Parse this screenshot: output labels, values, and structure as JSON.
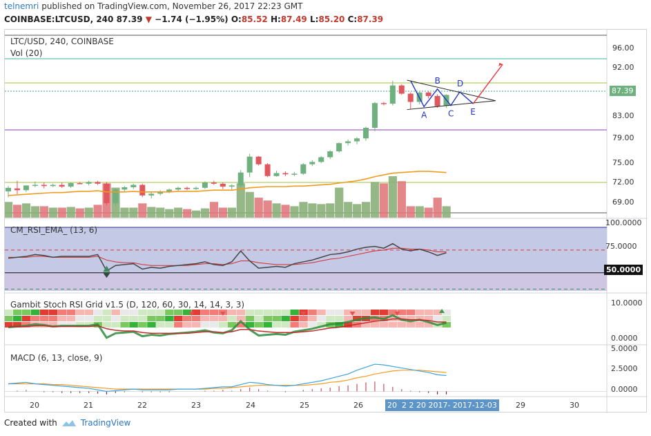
{
  "header": {
    "username": "telnemri",
    "published_text": "published on TradingView.com, November 26, 2017 22:23 GMT",
    "symbol": "COINBASE:LTCUSD, 240",
    "last": "87.39",
    "change": "−1.74 (−1.95%)",
    "o_label": "O:",
    "o_val": "85.52",
    "h_label": "H:",
    "h_val": "87.49",
    "l_label": "L:",
    "l_val": "85.20",
    "c_label": "C:",
    "c_val": "87.39"
  },
  "pane_main": {
    "title": "LTC/USD, 240, COINBASE",
    "vol_label": "Vol (20)",
    "y_ticks": [
      "96.00",
      "92.00",
      "87.39",
      "83.00",
      "79.00",
      "75.00",
      "72.00",
      "69.00"
    ],
    "price_tag": "87.39",
    "pattern_labels": [
      "A",
      "B",
      "C",
      "D",
      "E"
    ]
  },
  "pane_rsi": {
    "title": "CM_RSI_EMA_ (13, 6)",
    "y_ticks": [
      "100.0000",
      "75.0000",
      "50.0000"
    ],
    "tag": "50.0000"
  },
  "pane_stoch": {
    "title": "Gambit Stoch RSI Grid v1.5 (D, 120, 60, 30, 14, 14, 3, 3)",
    "y_ticks": [
      "10.0000",
      "0.0000"
    ]
  },
  "pane_macd": {
    "title": "MACD (6, 13, close, 9)",
    "y_ticks": [
      "5.0000",
      "2.5000",
      "0.0000"
    ]
  },
  "x_axis": {
    "ticks": [
      "20",
      "21",
      "22",
      "23",
      "24",
      "25",
      "26",
      "29",
      "30"
    ],
    "highlight": "20  2 2 20 2017- 2017-12-03"
  },
  "footer": {
    "created_with": "Created with",
    "brand": "TradingView"
  },
  "colors": {
    "up": "#6fb07f",
    "down": "#e0575e",
    "accent": "#2a79c8",
    "rsi_bg": "#b6bee0"
  },
  "chart_data": {
    "type": "candlestick",
    "title": "LTC/USD, 240, COINBASE",
    "series": [
      {
        "name": "LTC/USD",
        "candles": [
          {
            "o": 71.0,
            "h": 71.9,
            "l": 70.0,
            "c": 71.6
          },
          {
            "o": 71.5,
            "h": 72.8,
            "l": 70.5,
            "c": 71.2
          },
          {
            "o": 71.2,
            "h": 72.0,
            "l": 70.9,
            "c": 72.0
          },
          {
            "o": 72.0,
            "h": 72.7,
            "l": 71.7,
            "c": 72.1
          },
          {
            "o": 72.1,
            "h": 72.5,
            "l": 71.5,
            "c": 71.9
          },
          {
            "o": 71.9,
            "h": 72.3,
            "l": 71.7,
            "c": 72.1
          },
          {
            "o": 72.1,
            "h": 72.5,
            "l": 71.6,
            "c": 71.8
          },
          {
            "o": 71.8,
            "h": 72.5,
            "l": 71.6,
            "c": 72.4
          },
          {
            "o": 72.4,
            "h": 72.6,
            "l": 72.2,
            "c": 72.3
          },
          {
            "o": 72.3,
            "h": 72.8,
            "l": 72.0,
            "c": 72.6
          },
          {
            "o": 72.6,
            "h": 72.8,
            "l": 72.1,
            "c": 72.3
          },
          {
            "o": 72.3,
            "h": 72.6,
            "l": 68.6,
            "c": 69.0
          },
          {
            "o": 69.0,
            "h": 71.5,
            "l": 68.5,
            "c": 71.3
          },
          {
            "o": 71.3,
            "h": 71.9,
            "l": 71.0,
            "c": 71.7
          },
          {
            "o": 71.7,
            "h": 72.3,
            "l": 71.4,
            "c": 72.1
          },
          {
            "o": 72.1,
            "h": 72.3,
            "l": 70.0,
            "c": 70.3
          },
          {
            "o": 70.3,
            "h": 71.0,
            "l": 69.8,
            "c": 70.6
          },
          {
            "o": 70.6,
            "h": 71.2,
            "l": 70.3,
            "c": 71.0
          },
          {
            "o": 71.0,
            "h": 71.5,
            "l": 70.7,
            "c": 71.3
          },
          {
            "o": 71.3,
            "h": 71.8,
            "l": 71.0,
            "c": 71.6
          },
          {
            "o": 71.6,
            "h": 71.8,
            "l": 71.2,
            "c": 71.4
          },
          {
            "o": 71.4,
            "h": 71.8,
            "l": 71.2,
            "c": 71.6
          },
          {
            "o": 71.6,
            "h": 72.7,
            "l": 71.4,
            "c": 72.5
          },
          {
            "o": 72.5,
            "h": 72.8,
            "l": 72.1,
            "c": 72.3
          },
          {
            "o": 72.3,
            "h": 72.5,
            "l": 71.4,
            "c": 71.8
          },
          {
            "o": 71.8,
            "h": 72.2,
            "l": 71.3,
            "c": 72.0
          },
          {
            "o": 72.0,
            "h": 74.6,
            "l": 71.7,
            "c": 74.2
          },
          {
            "o": 74.2,
            "h": 77.4,
            "l": 73.4,
            "c": 76.9
          },
          {
            "o": 76.9,
            "h": 77.0,
            "l": 75.4,
            "c": 75.6
          },
          {
            "o": 75.6,
            "h": 75.8,
            "l": 73.4,
            "c": 73.6
          },
          {
            "o": 73.6,
            "h": 74.5,
            "l": 73.5,
            "c": 74.1
          },
          {
            "o": 74.1,
            "h": 74.4,
            "l": 73.6,
            "c": 73.9
          },
          {
            "o": 73.9,
            "h": 74.3,
            "l": 73.6,
            "c": 74.0
          },
          {
            "o": 74.0,
            "h": 75.8,
            "l": 73.8,
            "c": 75.6
          },
          {
            "o": 75.6,
            "h": 76.3,
            "l": 75.3,
            "c": 76.0
          },
          {
            "o": 76.0,
            "h": 77.0,
            "l": 75.8,
            "c": 76.8
          },
          {
            "o": 76.8,
            "h": 78.0,
            "l": 76.5,
            "c": 77.8
          },
          {
            "o": 77.8,
            "h": 79.3,
            "l": 77.6,
            "c": 79.2
          },
          {
            "o": 79.2,
            "h": 79.8,
            "l": 78.8,
            "c": 79.5
          },
          {
            "o": 79.5,
            "h": 80.2,
            "l": 79.0,
            "c": 80.0
          },
          {
            "o": 80.0,
            "h": 82.0,
            "l": 79.6,
            "c": 81.8
          },
          {
            "o": 81.8,
            "h": 86.2,
            "l": 81.2,
            "c": 86.0
          },
          {
            "o": 86.0,
            "h": 86.2,
            "l": 85.6,
            "c": 85.9
          },
          {
            "o": 85.9,
            "h": 89.8,
            "l": 85.6,
            "c": 89.0
          },
          {
            "o": 89.0,
            "h": 89.2,
            "l": 87.4,
            "c": 87.6
          },
          {
            "o": 87.6,
            "h": 87.8,
            "l": 85.0,
            "c": 86.2
          },
          {
            "o": 86.2,
            "h": 87.9,
            "l": 85.8,
            "c": 87.8
          },
          {
            "o": 87.8,
            "h": 88.0,
            "l": 86.8,
            "c": 87.2
          },
          {
            "o": 87.2,
            "h": 87.5,
            "l": 85.2,
            "c": 85.5
          },
          {
            "o": 85.52,
            "h": 87.49,
            "l": 85.2,
            "c": 87.39
          }
        ]
      }
    ],
    "volume": [
      22,
      18,
      20,
      16,
      16,
      14,
      14,
      15,
      13,
      14,
      18,
      48,
      42,
      14,
      14,
      20,
      15,
      14,
      12,
      14,
      12,
      10,
      13,
      22,
      14,
      14,
      48,
      36,
      28,
      24,
      20,
      18,
      16,
      22,
      20,
      19,
      20,
      42,
      22,
      19,
      22,
      50,
      48,
      58,
      51,
      16,
      16,
      14,
      28,
      16
    ],
    "ylim": [
      67,
      98
    ],
    "ema": [
      70.3,
      70.4,
      70.5,
      70.6,
      70.7,
      70.8,
      70.8,
      70.9,
      71.0,
      71.0,
      71.1,
      70.9,
      70.9,
      70.9,
      71.0,
      70.9,
      70.9,
      70.9,
      70.9,
      71.0,
      71.0,
      71.0,
      71.1,
      71.2,
      71.2,
      71.2,
      71.4,
      71.6,
      71.7,
      71.8,
      71.8,
      71.8,
      71.9,
      71.9,
      72.0,
      72.1,
      72.2,
      72.4,
      72.6,
      72.8,
      73.1,
      73.5,
      73.8,
      74.1,
      74.2,
      74.3,
      74.4,
      74.4,
      74.3,
      74.2
    ],
    "pattern_points": [
      {
        "label": "",
        "x": 45,
        "y": 89.8
      },
      {
        "label": "A",
        "x": 46.5,
        "y": 85.4
      },
      {
        "label": "B",
        "x": 48,
        "y": 88.4
      },
      {
        "label": "C",
        "x": 49.5,
        "y": 85.6
      },
      {
        "label": "D",
        "x": 50.5,
        "y": 87.9
      },
      {
        "label": "E",
        "x": 52,
        "y": 85.9
      }
    ],
    "rsi": {
      "ylim": [
        30,
        100
      ],
      "levels": [
        100,
        75,
        50
      ],
      "rsi_line": [
        66,
        67,
        68,
        70,
        69,
        67,
        68,
        68,
        68,
        68,
        70,
        52,
        58,
        59,
        60,
        54,
        56,
        55,
        57,
        58,
        59,
        60,
        62,
        59,
        58,
        62,
        74,
        63,
        55,
        56,
        57,
        56,
        60,
        62,
        64,
        67,
        70,
        71,
        73,
        76,
        78,
        79,
        77,
        82,
        76,
        74,
        76,
        73,
        69,
        72
      ],
      "ema_line": [
        67,
        67,
        67,
        68,
        68,
        67,
        67,
        67,
        67,
        67,
        68,
        64,
        62,
        61,
        61,
        59,
        58,
        58,
        58,
        58,
        58,
        59,
        60,
        60,
        59,
        60,
        63,
        63,
        61,
        60,
        59,
        59,
        59,
        60,
        61,
        63,
        65,
        66,
        68,
        70,
        72,
        74,
        75,
        77,
        77,
        76,
        76,
        75,
        73,
        73
      ]
    },
    "macd": {
      "ylim": [
        -0.6,
        5.8
      ],
      "macd_line": [
        1.0,
        1.1,
        1.2,
        1.0,
        0.9,
        0.8,
        0.7,
        0.6,
        0.5,
        0.4,
        0.2,
        0.0,
        0.1,
        0.2,
        0.3,
        0.2,
        0.2,
        0.2,
        0.2,
        0.3,
        0.3,
        0.3,
        0.4,
        0.5,
        0.6,
        0.6,
        0.9,
        1.2,
        1.1,
        0.9,
        0.8,
        0.7,
        0.8,
        1.0,
        1.2,
        1.4,
        1.7,
        2.0,
        2.3,
        2.8,
        3.2,
        3.6,
        3.5,
        3.3,
        3.1,
        2.9,
        2.7,
        2.5,
        2.2,
        2.1
      ],
      "signal_line": [
        1.0,
        1.0,
        1.0,
        1.0,
        1.0,
        0.9,
        0.9,
        0.8,
        0.7,
        0.6,
        0.5,
        0.4,
        0.3,
        0.3,
        0.3,
        0.3,
        0.3,
        0.3,
        0.3,
        0.3,
        0.3,
        0.3,
        0.3,
        0.4,
        0.4,
        0.5,
        0.6,
        0.7,
        0.8,
        0.8,
        0.8,
        0.8,
        0.8,
        0.8,
        0.9,
        1.0,
        1.2,
        1.3,
        1.5,
        1.8,
        2.0,
        2.3,
        2.5,
        2.7,
        2.8,
        2.8,
        2.8,
        2.7,
        2.6,
        2.5
      ]
    }
  }
}
